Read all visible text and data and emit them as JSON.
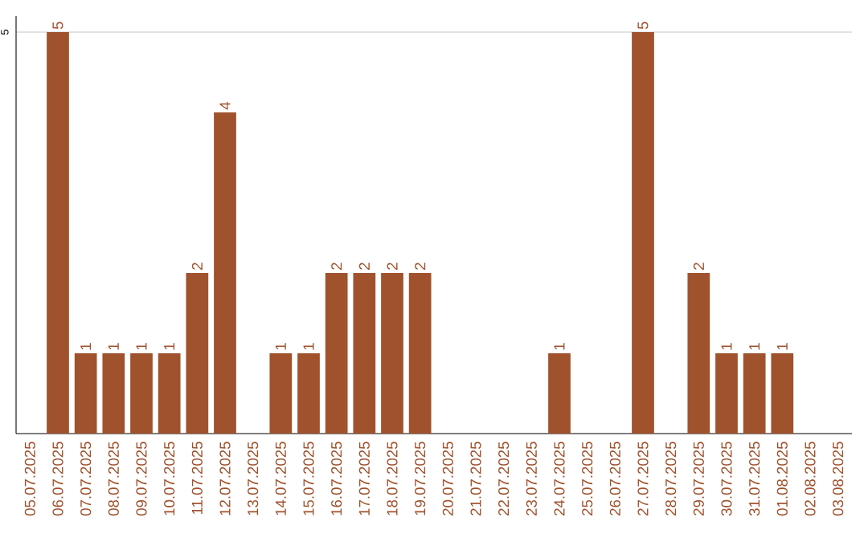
{
  "chart_data": {
    "type": "bar",
    "categories": [
      "05.07.2025",
      "06.07.2025",
      "07.07.2025",
      "08.07.2025",
      "09.07.2025",
      "10.07.2025",
      "11.07.2025",
      "12.07.2025",
      "13.07.2025",
      "14.07.2025",
      "15.07.2025",
      "16.07.2025",
      "17.07.2025",
      "18.07.2025",
      "19.07.2025",
      "20.07.2025",
      "21.07.2025",
      "22.07.2025",
      "23.07.2025",
      "24.07.2025",
      "25.07.2025",
      "26.07.2025",
      "27.07.2025",
      "28.07.2025",
      "29.07.2025",
      "30.07.2025",
      "31.07.2025",
      "01.08.2025",
      "02.08.2025",
      "03.08.2025"
    ],
    "values": [
      0,
      5,
      1,
      1,
      1,
      1,
      2,
      4,
      0,
      1,
      1,
      2,
      2,
      2,
      2,
      0,
      0,
      0,
      0,
      1,
      0,
      0,
      5,
      0,
      2,
      1,
      1,
      1,
      0,
      0
    ],
    "value_labels": [
      null,
      "5",
      "1",
      "1",
      "1",
      "1",
      "2",
      "4",
      null,
      "1",
      "1",
      "2",
      "2",
      "2",
      "2",
      null,
      null,
      null,
      null,
      "1",
      null,
      null,
      "5",
      null,
      "2",
      "1",
      "1",
      "1",
      null,
      null
    ],
    "color": "#a0522d",
    "ylim": [
      0,
      5.2
    ],
    "yticks": [
      5
    ],
    "grid": "y"
  }
}
